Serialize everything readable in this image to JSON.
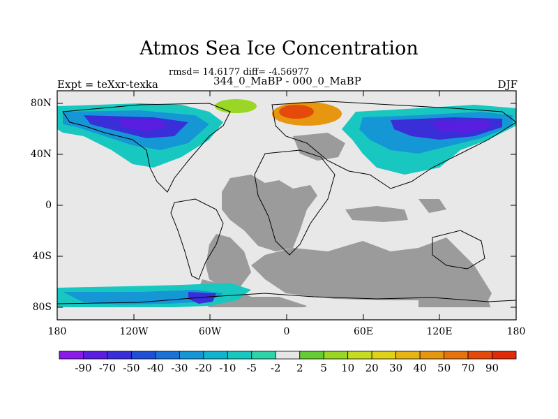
{
  "title": "Atmos Sea Ice Concentration",
  "stats": "rmsd= 14.6177 diff= -4.56977",
  "experiment": "Expt = teXxr-texka",
  "period": "344_0_MaBP - 000_0_MaBP",
  "season": "DJF",
  "y_ticks": [
    "80N",
    "40N",
    "0",
    "40S",
    "80S"
  ],
  "x_ticks": [
    "180",
    "120W",
    "60W",
    "0",
    "60E",
    "120E",
    "180"
  ],
  "colorbar": {
    "labels": [
      "-90",
      "-70",
      "-50",
      "-40",
      "-30",
      "-20",
      "-10",
      "-5",
      "-2",
      "2",
      "5",
      "10",
      "20",
      "30",
      "40",
      "50",
      "70",
      "90"
    ],
    "colors": [
      "#8a1ae6",
      "#5a1ee0",
      "#3a2ed8",
      "#1f4fd6",
      "#1a72d8",
      "#1597d6",
      "#10b4cf",
      "#18c8c0",
      "#2ed4a8",
      "#e6e6e6",
      "#66cc33",
      "#99d626",
      "#c6dc22",
      "#e0d21a",
      "#e6b414",
      "#e6960f",
      "#e6730c",
      "#e64a0a",
      "#e02a08"
    ]
  },
  "colors": {
    "land_mask": "#e8e8e8",
    "gray_mask": "#9b9b9b",
    "background": "#ffffff"
  }
}
